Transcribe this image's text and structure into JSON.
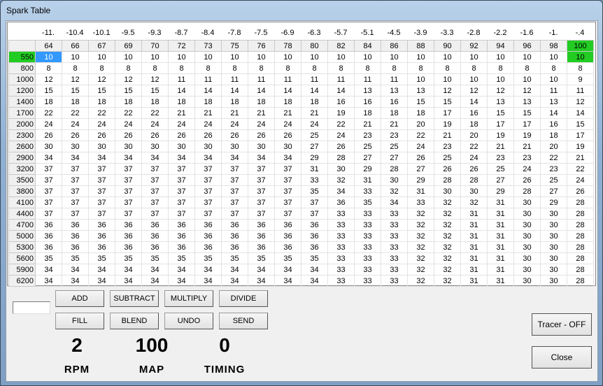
{
  "window": {
    "title": "Spark Table"
  },
  "colors": {
    "selected": "#3399ff",
    "highlight": "#22cc22"
  },
  "table": {
    "top_labels": [
      "-11.",
      "-10.4",
      "-10.1",
      "-9.5",
      "-9.3",
      "-8.7",
      "-8.4",
      "-7.8",
      "-7.5",
      "-6.9",
      "-6.3",
      "-5.7",
      "-5.1",
      "-4.5",
      "-3.9",
      "-3.3",
      "-2.8",
      "-2.2",
      "-1.6",
      "-1.",
      "-.4"
    ],
    "columns": [
      "64",
      "66",
      "67",
      "69",
      "70",
      "72",
      "73",
      "75",
      "76",
      "78",
      "80",
      "82",
      "84",
      "86",
      "88",
      "90",
      "92",
      "94",
      "96",
      "98",
      "100"
    ],
    "rows": [
      {
        "rpm": "550",
        "values": [
          10,
          10,
          10,
          10,
          10,
          10,
          10,
          10,
          10,
          10,
          10,
          10,
          10,
          10,
          10,
          10,
          10,
          10,
          10,
          10,
          10
        ]
      },
      {
        "rpm": "800",
        "values": [
          8,
          8,
          8,
          8,
          8,
          8,
          8,
          8,
          8,
          8,
          8,
          8,
          8,
          8,
          8,
          8,
          8,
          8,
          8,
          8,
          8
        ]
      },
      {
        "rpm": "1000",
        "values": [
          12,
          12,
          12,
          12,
          12,
          11,
          11,
          11,
          11,
          11,
          11,
          11,
          11,
          11,
          10,
          10,
          10,
          10,
          10,
          10,
          9
        ]
      },
      {
        "rpm": "1200",
        "values": [
          15,
          15,
          15,
          15,
          15,
          14,
          14,
          14,
          14,
          14,
          14,
          14,
          13,
          13,
          13,
          12,
          12,
          12,
          12,
          11,
          11
        ]
      },
      {
        "rpm": "1400",
        "values": [
          18,
          18,
          18,
          18,
          18,
          18,
          18,
          18,
          18,
          18,
          18,
          16,
          16,
          16,
          15,
          15,
          14,
          13,
          13,
          13,
          12
        ]
      },
      {
        "rpm": "1700",
        "values": [
          22,
          22,
          22,
          22,
          22,
          21,
          21,
          21,
          21,
          21,
          21,
          19,
          18,
          18,
          18,
          17,
          16,
          15,
          15,
          14,
          14
        ]
      },
      {
        "rpm": "2000",
        "values": [
          24,
          24,
          24,
          24,
          24,
          24,
          24,
          24,
          24,
          24,
          24,
          22,
          21,
          21,
          20,
          19,
          18,
          17,
          17,
          16,
          15
        ]
      },
      {
        "rpm": "2300",
        "values": [
          26,
          26,
          26,
          26,
          26,
          26,
          26,
          26,
          26,
          26,
          25,
          24,
          23,
          23,
          22,
          21,
          20,
          19,
          19,
          18,
          17
        ]
      },
      {
        "rpm": "2600",
        "values": [
          30,
          30,
          30,
          30,
          30,
          30,
          30,
          30,
          30,
          30,
          27,
          26,
          25,
          25,
          24,
          23,
          22,
          21,
          21,
          20,
          19
        ]
      },
      {
        "rpm": "2900",
        "values": [
          34,
          34,
          34,
          34,
          34,
          34,
          34,
          34,
          34,
          34,
          29,
          28,
          27,
          27,
          26,
          25,
          24,
          23,
          23,
          22,
          21
        ]
      },
      {
        "rpm": "3200",
        "values": [
          37,
          37,
          37,
          37,
          37,
          37,
          37,
          37,
          37,
          37,
          31,
          30,
          29,
          28,
          27,
          26,
          26,
          25,
          24,
          23,
          22
        ]
      },
      {
        "rpm": "3500",
        "values": [
          37,
          37,
          37,
          37,
          37,
          37,
          37,
          37,
          37,
          37,
          33,
          32,
          31,
          30,
          29,
          28,
          28,
          27,
          26,
          25,
          24
        ]
      },
      {
        "rpm": "3800",
        "values": [
          37,
          37,
          37,
          37,
          37,
          37,
          37,
          37,
          37,
          37,
          35,
          34,
          33,
          32,
          31,
          30,
          30,
          29,
          28,
          27,
          26
        ]
      },
      {
        "rpm": "4100",
        "values": [
          37,
          37,
          37,
          37,
          37,
          37,
          37,
          37,
          37,
          37,
          37,
          36,
          35,
          34,
          33,
          32,
          32,
          31,
          30,
          29,
          28
        ]
      },
      {
        "rpm": "4400",
        "values": [
          37,
          37,
          37,
          37,
          37,
          37,
          37,
          37,
          37,
          37,
          37,
          33,
          33,
          33,
          32,
          32,
          31,
          31,
          30,
          30,
          28
        ]
      },
      {
        "rpm": "4700",
        "values": [
          36,
          36,
          36,
          36,
          36,
          36,
          36,
          36,
          36,
          36,
          36,
          33,
          33,
          33,
          32,
          32,
          31,
          31,
          30,
          30,
          28
        ]
      },
      {
        "rpm": "5000",
        "values": [
          36,
          36,
          36,
          36,
          36,
          36,
          36,
          36,
          36,
          36,
          36,
          33,
          33,
          33,
          32,
          32,
          31,
          31,
          30,
          30,
          28
        ]
      },
      {
        "rpm": "5300",
        "values": [
          36,
          36,
          36,
          36,
          36,
          36,
          36,
          36,
          36,
          36,
          36,
          33,
          33,
          33,
          32,
          32,
          31,
          31,
          30,
          30,
          28
        ]
      },
      {
        "rpm": "5600",
        "values": [
          35,
          35,
          35,
          35,
          35,
          35,
          35,
          35,
          35,
          35,
          35,
          33,
          33,
          33,
          32,
          32,
          31,
          31,
          30,
          30,
          28
        ]
      },
      {
        "rpm": "5900",
        "values": [
          34,
          34,
          34,
          34,
          34,
          34,
          34,
          34,
          34,
          34,
          34,
          33,
          33,
          33,
          32,
          32,
          31,
          31,
          30,
          30,
          28
        ]
      },
      {
        "rpm": "6200",
        "values": [
          34,
          34,
          34,
          34,
          34,
          34,
          34,
          34,
          34,
          34,
          34,
          33,
          33,
          33,
          32,
          32,
          31,
          31,
          30,
          30,
          28
        ]
      }
    ],
    "selected_cell": {
      "row": 0,
      "col": 0
    },
    "highlight_row": 0,
    "highlight_col": 20
  },
  "input": {
    "value": ""
  },
  "buttons": {
    "add": "ADD",
    "subtract": "SUBTRACT",
    "multiply": "MULTIPLY",
    "divide": "DIVIDE",
    "fill": "FILL",
    "blend": "BLEND",
    "undo": "UNDO",
    "send": "SEND",
    "tracer": "Tracer - OFF",
    "close": "Close"
  },
  "readouts": {
    "rpm_value": "2",
    "rpm_label": "RPM",
    "map_value": "100",
    "map_label": "MAP",
    "timing_value": "0",
    "timing_label": "TIMING"
  }
}
